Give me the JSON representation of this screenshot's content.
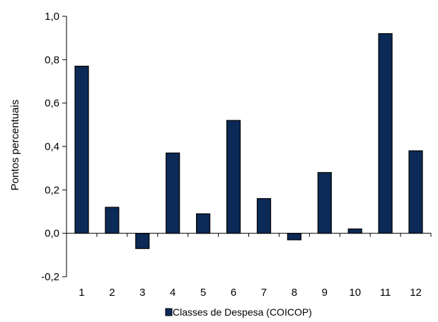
{
  "chart_data": {
    "type": "bar",
    "categories": [
      "1",
      "2",
      "3",
      "4",
      "5",
      "6",
      "7",
      "8",
      "9",
      "10",
      "11",
      "12"
    ],
    "series": [
      {
        "name": "Classes de Despesa (COICOP)",
        "values": [
          0.77,
          0.12,
          -0.07,
          0.37,
          0.09,
          0.52,
          0.16,
          -0.03,
          0.28,
          0.02,
          0.92,
          0.38
        ]
      }
    ],
    "ylabel": "Pontos percentuais",
    "ylim": [
      -0.2,
      1.0
    ],
    "yticks": [
      -0.2,
      0.0,
      0.2,
      0.4,
      0.6,
      0.8,
      1.0
    ],
    "ytick_labels": [
      "-0,2",
      "0,0",
      "0,2",
      "0,4",
      "0,6",
      "0,8",
      "1,0"
    ],
    "grid": false,
    "legend_position": "bottom",
    "colors": {
      "bar_fill": "#0c2a57",
      "bar_stroke": "#000000",
      "axis": "#000000"
    }
  }
}
